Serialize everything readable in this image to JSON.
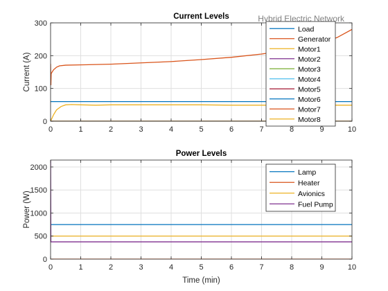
{
  "window_title": "Hybrid Electric Network",
  "chart_data": [
    {
      "type": "line",
      "title": "Current Levels",
      "xlabel": "",
      "ylabel": "Current (A)",
      "xlim": [
        0,
        10
      ],
      "ylim": [
        0,
        300
      ],
      "xticks": [
        0,
        1,
        2,
        3,
        4,
        5,
        6,
        7,
        8,
        9,
        10
      ],
      "yticks": [
        0,
        100,
        200,
        300
      ],
      "grid": true,
      "legend_position": "top-right",
      "series": [
        {
          "name": "Load",
          "color": "#0072bd",
          "x": [
            0,
            0.05,
            0.3,
            10
          ],
          "y": [
            60,
            60,
            60,
            60
          ]
        },
        {
          "name": "Generator",
          "color": "#d95319",
          "x": [
            0,
            0.01,
            0.02,
            0.05,
            0.1,
            0.2,
            0.3,
            0.5,
            1,
            2,
            3,
            4,
            5,
            6,
            7,
            8,
            8.5,
            9,
            9.5,
            10
          ],
          "y": [
            175,
            110,
            145,
            150,
            157,
            165,
            169,
            171,
            172,
            174,
            178,
            182,
            188,
            195,
            205,
            218,
            228,
            240,
            255,
            280
          ]
        },
        {
          "name": "Motor1",
          "color": "#edb120",
          "x": [
            0,
            0.1,
            0.2,
            0.35,
            0.5,
            0.7,
            1,
            1.5,
            2,
            3,
            4,
            5,
            6,
            7,
            8,
            9,
            10
          ],
          "y": [
            0,
            20,
            35,
            45,
            50,
            51,
            50,
            49,
            50,
            50,
            50,
            50,
            49,
            49,
            49,
            49,
            49
          ]
        },
        {
          "name": "Motor2",
          "color": "#7e2f8e",
          "x": [
            0,
            10
          ],
          "y": [
            0,
            0
          ]
        },
        {
          "name": "Motor3",
          "color": "#77ac30",
          "x": [
            0,
            10
          ],
          "y": [
            0,
            0
          ]
        },
        {
          "name": "Motor4",
          "color": "#4dbeee",
          "x": [
            0,
            10
          ],
          "y": [
            0,
            0
          ]
        },
        {
          "name": "Motor5",
          "color": "#a2142f",
          "x": [
            0,
            10
          ],
          "y": [
            0,
            0
          ]
        },
        {
          "name": "Motor6",
          "color": "#0072bd",
          "x": [
            0,
            10
          ],
          "y": [
            0,
            0
          ]
        },
        {
          "name": "Motor7",
          "color": "#d95319",
          "x": [
            0,
            10
          ],
          "y": [
            0,
            0
          ]
        },
        {
          "name": "Motor8",
          "color": "#edb120",
          "x": [
            0,
            10
          ],
          "y": [
            0,
            0
          ]
        }
      ]
    },
    {
      "type": "line",
      "title": "Power Levels",
      "xlabel": "Time (min)",
      "ylabel": "Power (W)",
      "xlim": [
        0,
        10
      ],
      "ylim": [
        0,
        2150
      ],
      "xticks": [
        0,
        1,
        2,
        3,
        4,
        5,
        6,
        7,
        8,
        9,
        10
      ],
      "yticks": [
        0,
        500,
        1000,
        1500,
        2000
      ],
      "grid": true,
      "legend_position": "top-right",
      "series": [
        {
          "name": "Lamp",
          "color": "#0072bd",
          "x": [
            0,
            10
          ],
          "y": [
            750,
            750
          ]
        },
        {
          "name": "Heater",
          "color": "#d95319",
          "x": [
            0,
            10
          ],
          "y": [
            0,
            0
          ]
        },
        {
          "name": "Avionics",
          "color": "#edb120",
          "x": [
            0,
            10
          ],
          "y": [
            500,
            500
          ]
        },
        {
          "name": "Fuel Pump",
          "color": "#7e2f8e",
          "x": [
            0,
            0.001,
            0.01,
            10
          ],
          "y": [
            2150,
            2150,
            375,
            375
          ]
        }
      ]
    }
  ]
}
